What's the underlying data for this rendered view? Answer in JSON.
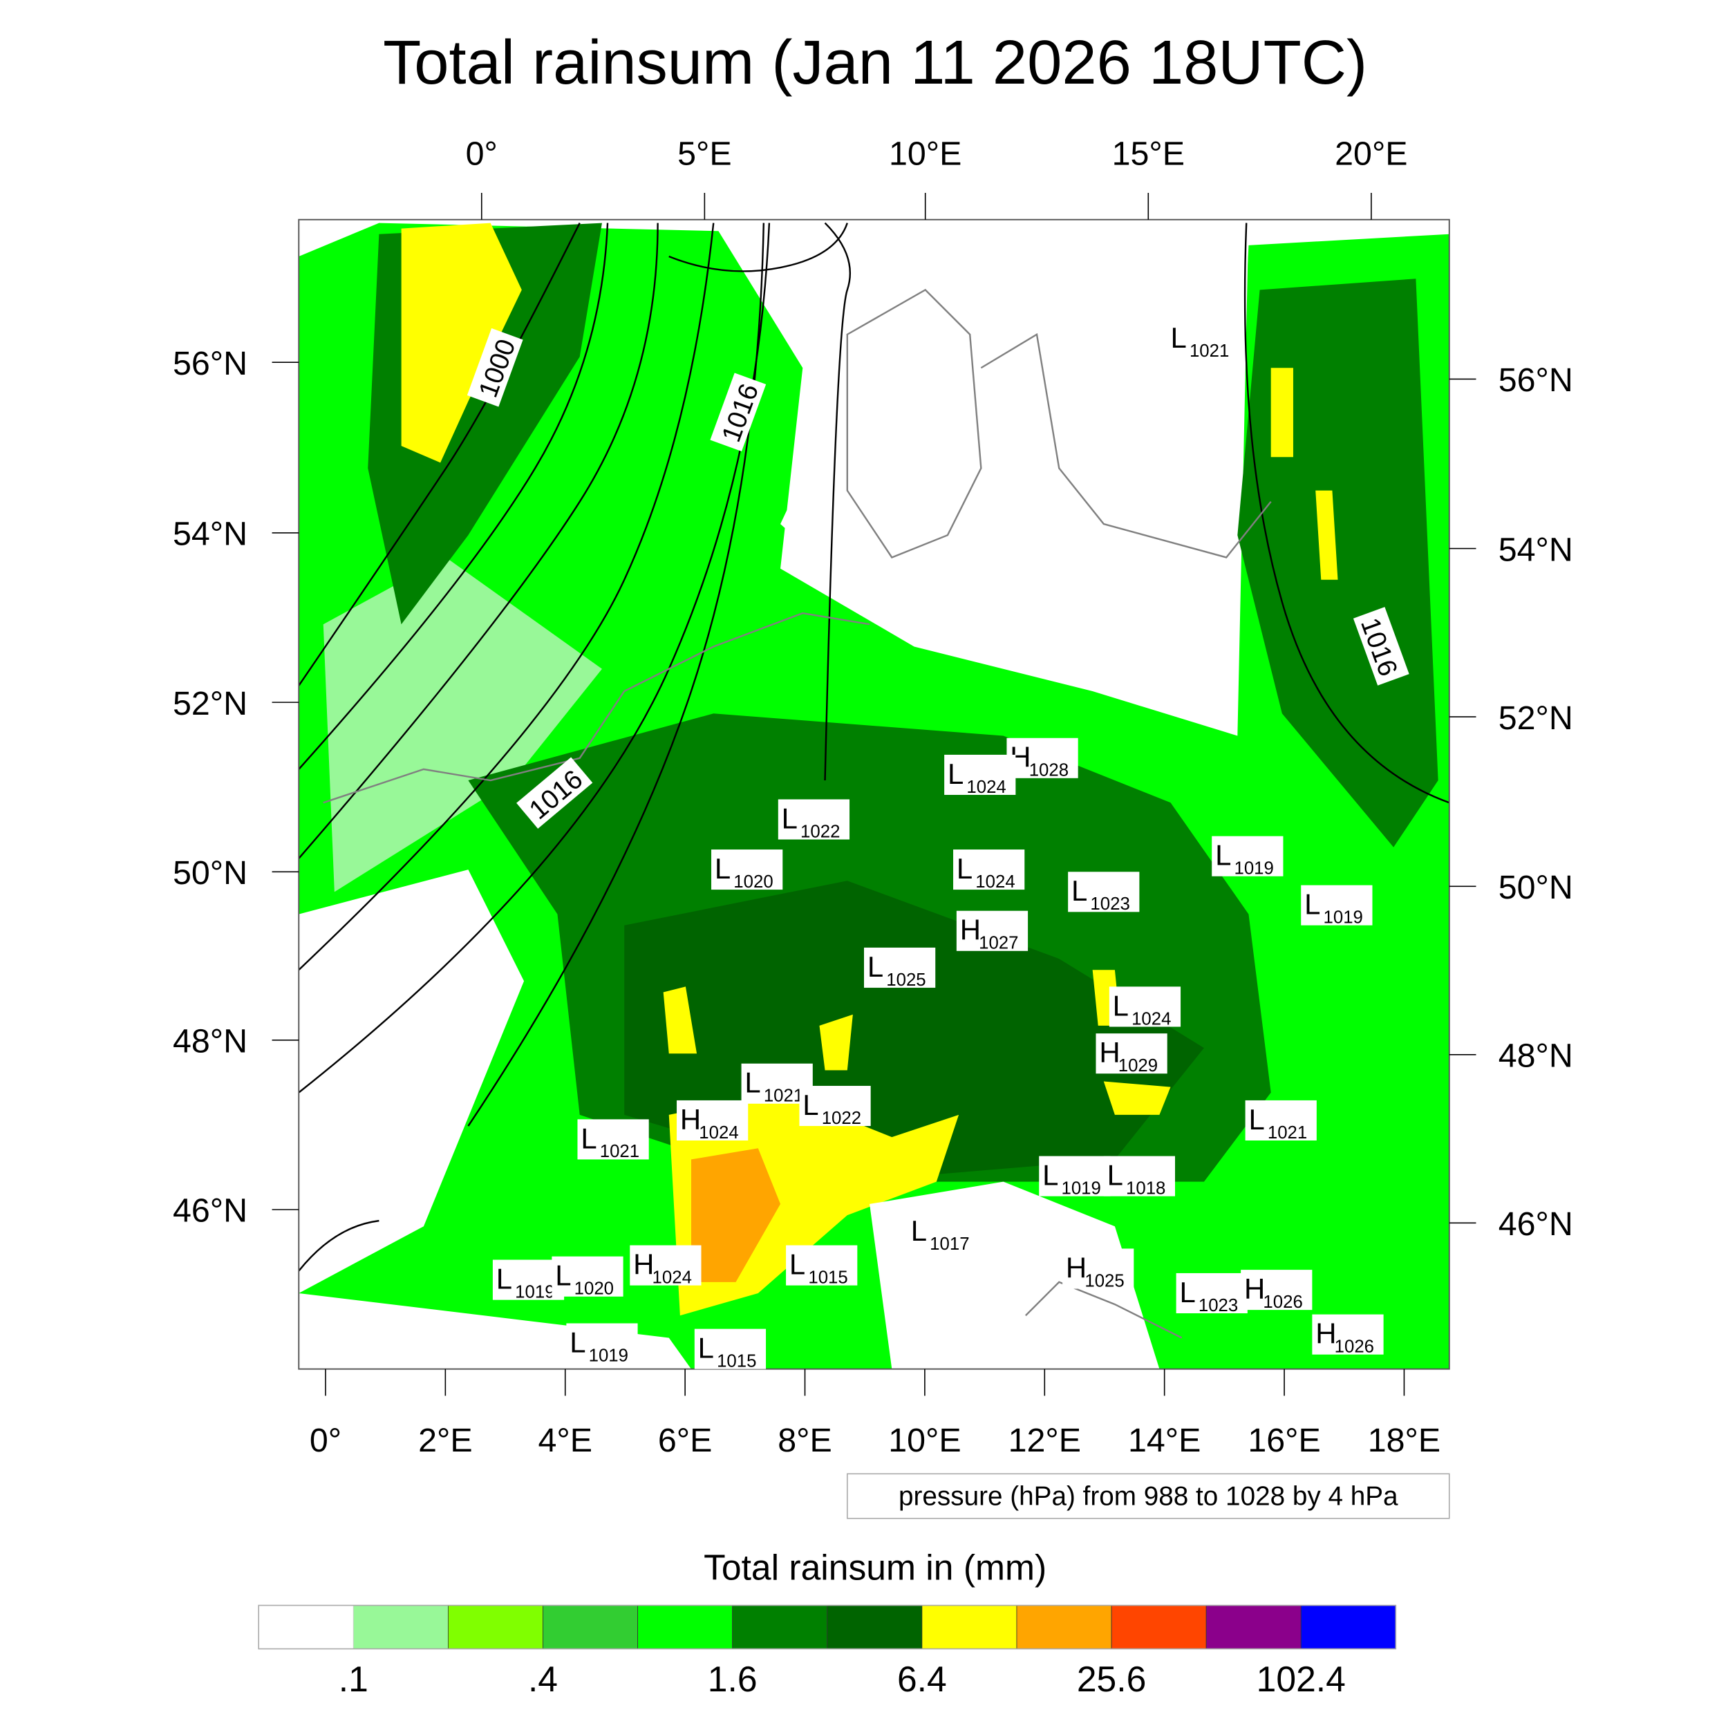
{
  "title": "Total rainsum (Jan 11 2026 18UTC)",
  "top_axis": [
    "0°",
    "5°E",
    "10°E",
    "15°E",
    "20°E"
  ],
  "left_axis": [
    "56°N",
    "54°N",
    "52°N",
    "50°N",
    "48°N",
    "46°N"
  ],
  "right_axis": [
    "56°N",
    "54°N",
    "52°N",
    "50°N",
    "48°N",
    "46°N"
  ],
  "bottom_axis": [
    "0°",
    "2°E",
    "4°E",
    "6°E",
    "8°E",
    "10°E",
    "12°E",
    "14°E",
    "16°E",
    "18°E"
  ],
  "pressure_note": "pressure (hPa) from 988 to 1028 by 4 hPa",
  "contour_labels": [
    "1000",
    "1016",
    "1016",
    "1016"
  ],
  "pressure_centers": [
    {
      "t": "L",
      "v": "1021"
    },
    {
      "t": "H",
      "v": "1028"
    },
    {
      "t": "L",
      "v": "1024"
    },
    {
      "t": "L",
      "v": "1022"
    },
    {
      "t": "L",
      "v": "1020"
    },
    {
      "t": "L",
      "v": "1024"
    },
    {
      "t": "L",
      "v": "1023"
    },
    {
      "t": "L",
      "v": "1019"
    },
    {
      "t": "L",
      "v": "1019"
    },
    {
      "t": "H",
      "v": "1027"
    },
    {
      "t": "L",
      "v": "1025"
    },
    {
      "t": "L",
      "v": "1024"
    },
    {
      "t": "H",
      "v": "1029"
    },
    {
      "t": "L",
      "v": "1021"
    },
    {
      "t": "L",
      "v": "1022"
    },
    {
      "t": "H",
      "v": "1024"
    },
    {
      "t": "L",
      "v": "1021"
    },
    {
      "t": "L",
      "v": "1021"
    },
    {
      "t": "L",
      "v": "1019"
    },
    {
      "t": "L",
      "v": "1018"
    },
    {
      "t": "L",
      "v": "1017"
    },
    {
      "t": "H",
      "v": "1024"
    },
    {
      "t": "L",
      "v": "1015"
    },
    {
      "t": "L",
      "v": "1019"
    },
    {
      "t": "L",
      "v": "1020"
    },
    {
      "t": "H",
      "v": "1025"
    },
    {
      "t": "L",
      "v": "1023"
    },
    {
      "t": "H",
      "v": "1026"
    },
    {
      "t": "H",
      "v": "1026"
    },
    {
      "t": "L",
      "v": "1019"
    },
    {
      "t": "L",
      "v": "1015"
    }
  ],
  "legend": {
    "title": "Total rainsum in (mm)",
    "colors": [
      "#ffffff",
      "#ffffff",
      "#98f898",
      "#80ff00",
      "#32cd32",
      "#00ff00",
      "#008000",
      "#006400",
      "#ffff00",
      "#ffa500",
      "#ff4500",
      "#8b008b",
      "#0000ff"
    ],
    "labels": [
      ".1",
      ".4",
      "1.6",
      "6.4",
      "25.6",
      "102.4"
    ]
  }
}
